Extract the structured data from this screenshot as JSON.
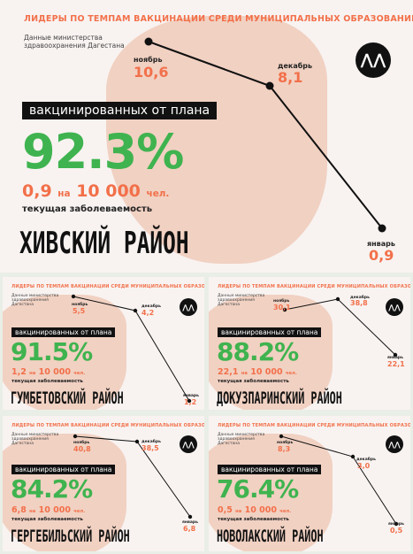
{
  "header_title": "ЛИДЕРЫ ПО ТЕМПАМ ВАКЦИНАЦИИ СРЕДИ МУНИЦИПАЛЬНЫХ ОБРАЗОВАНИЙ ДАГЕСТАНА",
  "source": "Данные министерства здравоохранения Дагестана",
  "vaccinated_label": "вакцинированных от плана",
  "per_label": "на",
  "per_value": "10 000",
  "per_unit": "чел.",
  "incidence_label": "текущая заболеваемость",
  "months": {
    "november": "ноябрь",
    "december": "декабрь",
    "january": "январь"
  },
  "colors": {
    "title": "#f2704a",
    "percent": "#3fb34f",
    "banner": "#111111",
    "map": "#f0cdbd"
  },
  "cards": [
    {
      "id": "khiv",
      "district": "ХИВСКИЙ РАЙОН",
      "percent": "92.3%",
      "incidence": "0,9",
      "trend": {
        "november": "10,6",
        "december": "8,1",
        "january": "0,9"
      }
    },
    {
      "id": "gumbetov",
      "district": "ГУМБЕТОВСКИЙ РАЙОН",
      "percent": "91.5%",
      "incidence": "1,2",
      "trend": {
        "november": "5,5",
        "december": "4,2",
        "january": "1,2"
      }
    },
    {
      "id": "dokuzparin",
      "district": "ДОКУЗПАРИНСКИЙ РАЙОН",
      "percent": "88.2%",
      "incidence": "22,1",
      "trend": {
        "november": "30,1",
        "december": "38,8",
        "january": "22,1"
      }
    },
    {
      "id": "gergebil",
      "district": "ГЕРГЕБИЛЬСКИЙ РАЙОН",
      "percent": "84.2%",
      "incidence": "6,8",
      "trend": {
        "november": "40,8",
        "december": "38,5",
        "january": "6,8"
      }
    },
    {
      "id": "novolak",
      "district": "НОВОЛАКСКИЙ РАЙОН",
      "percent": "76.4%",
      "incidence": "0,5",
      "trend": {
        "november": "8,3",
        "december": "3,0",
        "january": "0,5"
      }
    }
  ]
}
